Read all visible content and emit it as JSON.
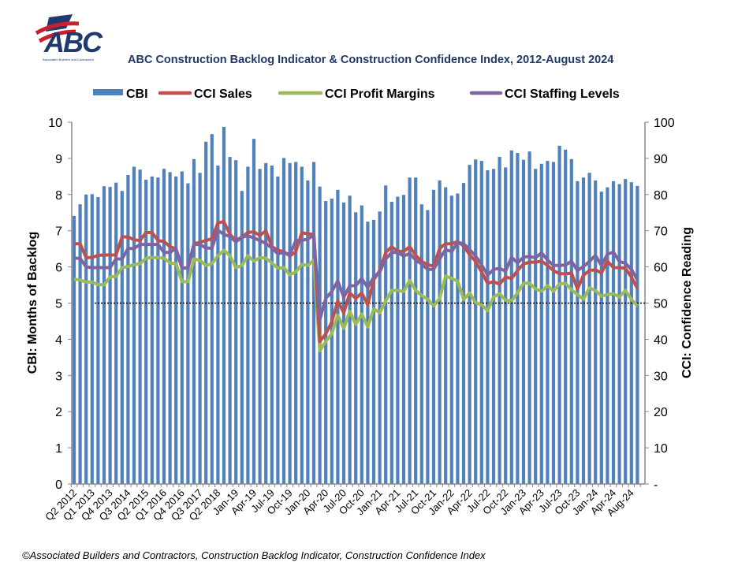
{
  "logo": {
    "text": "ABC",
    "subtext": "Associated Builders and Contractors"
  },
  "footer": "©Associated Builders and Contractors, Construction Backlog Indicator, Construction Confidence Index",
  "colors": {
    "cbi": "#4f81bd",
    "sales": "#c0504d",
    "profit": "#9bbb59",
    "staffing": "#8064a2",
    "title": "#1f3864"
  },
  "chart_data": {
    "type": "bar+line",
    "title": "ABC Construction Backlog Indicator & Construction Confidence Index, 2012-August 2024",
    "ylabel": "CBI: Months of Backlog",
    "y2label": "CCI: Confidence Reading",
    "ylim": [
      0,
      10
    ],
    "y2lim": [
      0,
      100
    ],
    "yticks": [
      "0",
      "1",
      "2",
      "3",
      "4",
      "5",
      "6",
      "7",
      "8",
      "9",
      "10"
    ],
    "y2ticks": [
      "-",
      "10",
      "20",
      "30",
      "40",
      "50",
      "60",
      "70",
      "80",
      "90",
      "100"
    ],
    "reference_line_y2": 50,
    "legend": [
      "CBI",
      "CCI Sales",
      "CCI Profit Margins",
      "CCI Staffing Levels"
    ],
    "legend_position": "top",
    "xtick_labels": [
      "Q2 2012",
      "Q1 2013",
      "Q4 2013",
      "Q3 2014",
      "Q2 2015",
      "Q1 2016",
      "Q4 2016",
      "Q3 2017",
      "Q2 2018",
      "Jan-19",
      "Apr-19",
      "Jul-19",
      "Oct-19",
      "Jan-20",
      "Apr-20",
      "Jul-20",
      "Oct-20",
      "Jan-21",
      "Apr-21",
      "Jul-21",
      "Oct-21",
      "Jan-22",
      "Apr-22",
      "Jul-22",
      "Oct-22",
      "Jan-23",
      "Apr-23",
      "Jul-23",
      "Oct-23",
      "Jan-24",
      "Apr-24",
      "Aug-24"
    ],
    "series": [
      {
        "name": "CBI",
        "type": "bar",
        "axis": "left",
        "values": [
          7.41,
          7.73,
          8.0,
          8.01,
          7.93,
          8.23,
          8.21,
          8.33,
          8.1,
          8.54,
          8.77,
          8.69,
          8.41,
          8.5,
          8.47,
          8.71,
          8.62,
          8.5,
          8.64,
          8.31,
          8.98,
          8.6,
          9.46,
          9.67,
          8.8,
          9.87,
          9.04,
          8.95,
          8.1,
          8.77,
          9.54,
          8.71,
          8.87,
          8.8,
          8.5,
          9.01,
          8.87,
          8.9,
          8.77,
          8.39,
          8.9,
          8.22,
          7.82,
          7.89,
          8.13,
          7.78,
          7.97,
          7.51,
          7.7,
          7.25,
          7.3,
          7.53,
          8.25,
          7.8,
          7.94,
          7.99,
          8.47,
          8.47,
          7.73,
          7.57,
          8.13,
          8.39,
          8.2,
          7.97,
          8.03,
          8.32,
          8.82,
          8.97,
          8.93,
          8.67,
          8.71,
          9.04,
          8.75,
          9.22,
          9.15,
          8.96,
          9.19,
          8.71,
          8.85,
          8.93,
          8.9,
          9.35,
          9.24,
          8.98,
          8.37,
          8.47,
          8.6,
          8.39,
          8.08,
          8.2,
          8.37,
          8.29,
          8.43,
          8.34,
          8.24
        ]
      },
      {
        "name": "CCI Sales",
        "type": "line",
        "axis": "right",
        "values": [
          66.4,
          66.4,
          62.6,
          62.6,
          63.2,
          63.3,
          63.3,
          63.3,
          68.3,
          68.3,
          67.5,
          67.3,
          69.5,
          69.5,
          67.3,
          67.0,
          65.6,
          65.0,
          59.7,
          59.7,
          66.4,
          66.8,
          67.3,
          67.8,
          72.2,
          72.5,
          69.0,
          67.3,
          68.3,
          69.5,
          69.7,
          68.7,
          70.0,
          65.6,
          64.6,
          64.2,
          63.0,
          64.2,
          69.5,
          69.1,
          69.0,
          39.4,
          41.5,
          44.8,
          50.6,
          47.3,
          52.8,
          51.3,
          52.8,
          49.5,
          56.4,
          59.0,
          64.0,
          65.6,
          64.3,
          64.3,
          65.6,
          63.2,
          61.5,
          60.6,
          60.2,
          65.1,
          66.4,
          66.4,
          67.0,
          65.8,
          63.4,
          61.5,
          58.6,
          55.5,
          55.9,
          55.2,
          57.2,
          56.8,
          59.0,
          60.8,
          61.3,
          61.3,
          61.6,
          60.4,
          59.0,
          58.1,
          58.1,
          58.3,
          53.9,
          57.7,
          59.0,
          59.2,
          58.3,
          61.6,
          59.8,
          59.8,
          59.6,
          57.2,
          54.0
        ]
      },
      {
        "name": "CCI Profit Margins",
        "type": "line",
        "axis": "right",
        "values": [
          56.6,
          56.4,
          55.8,
          55.8,
          55.1,
          55.1,
          57.2,
          57.4,
          59.8,
          60.1,
          60.6,
          60.9,
          62.4,
          62.6,
          62.6,
          62.4,
          61.1,
          60.9,
          55.9,
          55.9,
          62.2,
          61.8,
          60.4,
          60.9,
          63.1,
          64.6,
          63.1,
          59.8,
          60.4,
          63.1,
          61.6,
          62.6,
          62.4,
          61.1,
          59.6,
          59.8,
          57.8,
          58.6,
          60.7,
          60.4,
          61.9,
          36.8,
          39.4,
          41.5,
          46.6,
          43.0,
          47.7,
          44.1,
          47.0,
          43.4,
          48.4,
          47.3,
          50.6,
          53.5,
          53.5,
          53.2,
          56.3,
          53.5,
          52.1,
          51.1,
          49.2,
          51.3,
          57.5,
          56.8,
          56.1,
          51.0,
          52.8,
          50.1,
          49.5,
          47.9,
          51.7,
          52.6,
          50.8,
          50.6,
          52.8,
          55.5,
          55.5,
          53.9,
          53.3,
          54.8,
          53.3,
          55.3,
          55.5,
          53.7,
          52.3,
          51.1,
          54.2,
          53.5,
          51.9,
          52.4,
          52.6,
          51.7,
          53.5,
          51.0,
          49.2
        ]
      },
      {
        "name": "CCI Staffing Levels",
        "type": "line",
        "axis": "right",
        "values": [
          62.4,
          62.4,
          60.0,
          59.8,
          59.8,
          59.8,
          59.8,
          62.2,
          62.2,
          65.1,
          65.1,
          66.2,
          66.2,
          66.2,
          66.2,
          64.0,
          64.0,
          65.1,
          59.7,
          59.7,
          66.2,
          66.2,
          65.2,
          65.2,
          70.1,
          69.0,
          68.4,
          66.9,
          68.2,
          68.6,
          68.0,
          67.3,
          66.5,
          65.2,
          63.6,
          64.0,
          63.4,
          67.3,
          67.3,
          67.7,
          68.8,
          45.5,
          51.3,
          53.2,
          56.1,
          51.6,
          54.8,
          54.8,
          56.8,
          54.3,
          57.2,
          58.6,
          62.2,
          64.0,
          64.0,
          63.0,
          63.7,
          61.9,
          60.8,
          59.3,
          59.3,
          62.2,
          64.8,
          64.2,
          66.8,
          66.4,
          64.8,
          63.0,
          60.6,
          57.7,
          59.3,
          59.6,
          58.8,
          62.7,
          61.1,
          62.7,
          62.9,
          62.5,
          63.9,
          61.9,
          60.4,
          60.4,
          60.5,
          61.6,
          59.0,
          60.1,
          61.5,
          63.2,
          60.4,
          63.5,
          64.1,
          61.5,
          61.0,
          59.3,
          56.4
        ]
      }
    ]
  }
}
